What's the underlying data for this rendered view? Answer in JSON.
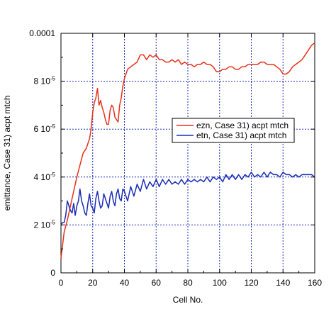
{
  "chart_data": {
    "type": "line",
    "xlabel": "Cell No.",
    "ylabel": "emittance, Case 31) acpt mtch",
    "xlim": [
      0,
      160
    ],
    "ylim": [
      0,
      0.0001
    ],
    "x_ticks": [
      "0",
      "20",
      "40",
      "60",
      "80",
      "100",
      "120",
      "140",
      "160"
    ],
    "y_ticks": [
      {
        "value": 0,
        "mant": "0",
        "exp": ""
      },
      {
        "value": 2e-05,
        "mant": "2 10",
        "exp": "-5"
      },
      {
        "value": 4e-05,
        "mant": "4 10",
        "exp": "-5"
      },
      {
        "value": 6e-05,
        "mant": "6 10",
        "exp": "-5"
      },
      {
        "value": 8e-05,
        "mant": "8 10",
        "exp": "-5"
      },
      {
        "value": 0.0001,
        "mant": "0.0001",
        "exp": ""
      }
    ],
    "grid": true,
    "legend_position": "right",
    "series": [
      {
        "name": "ezn, Case 31) acpt mtch",
        "color": "#e8311a",
        "x": [
          0,
          2,
          4,
          6,
          8,
          10,
          12,
          14,
          16,
          17,
          18,
          19,
          20,
          21,
          22,
          23,
          24,
          25,
          26,
          27,
          28,
          29,
          30,
          31,
          32,
          33,
          34,
          35,
          36,
          37,
          38,
          39,
          40,
          41,
          42,
          44,
          46,
          48,
          50,
          52,
          54,
          56,
          58,
          60,
          62,
          64,
          66,
          68,
          70,
          72,
          74,
          76,
          78,
          80,
          82,
          84,
          86,
          88,
          90,
          92,
          94,
          96,
          98,
          100,
          102,
          104,
          106,
          108,
          110,
          112,
          114,
          116,
          118,
          120,
          122,
          124,
          126,
          128,
          130,
          132,
          134,
          136,
          138,
          140,
          142,
          144,
          146,
          148,
          150,
          152,
          154,
          156,
          158,
          160
        ],
        "values": [
          6e-06,
          1.7e-05,
          2.2e-05,
          2.8e-05,
          3.4e-05,
          4e-05,
          4.5e-05,
          5e-05,
          5.2e-05,
          5.4e-05,
          5.6e-05,
          6e-05,
          6.7e-05,
          7.1e-05,
          7.3e-05,
          7.7e-05,
          7e-05,
          7.2e-05,
          6.9e-05,
          6.7e-05,
          6.4e-05,
          6.2e-05,
          6.2e-05,
          6.8e-05,
          7e-05,
          6.9e-05,
          6.5e-05,
          6.4e-05,
          6.3e-05,
          7e-05,
          7.3e-05,
          7.8e-05,
          8.1e-05,
          8.3e-05,
          8.5e-05,
          8.6e-05,
          8.7e-05,
          8.8e-05,
          9.1e-05,
          9.1e-05,
          8.9e-05,
          9.1e-05,
          9e-05,
          9.1e-05,
          8.9e-05,
          8.9e-05,
          8.8e-05,
          8.8e-05,
          8.9e-05,
          8.8e-05,
          8.9e-05,
          8.7e-05,
          8.8e-05,
          8.7e-05,
          8.7e-05,
          8.6e-05,
          8.7e-05,
          8.7e-05,
          8.8e-05,
          8.7e-05,
          8.7e-05,
          8.6e-05,
          8.4e-05,
          8.4e-05,
          8.5e-05,
          8.5e-05,
          8.6e-05,
          8.6e-05,
          8.5e-05,
          8.5e-05,
          8.6e-05,
          8.6e-05,
          8.7e-05,
          8.7e-05,
          8.7e-05,
          8.7e-05,
          8.8e-05,
          8.8e-05,
          8.7e-05,
          8.7e-05,
          8.7e-05,
          8.6e-05,
          8.5e-05,
          8.3e-05,
          8.3e-05,
          8.4e-05,
          8.6e-05,
          8.7e-05,
          8.8e-05,
          8.9e-05,
          9.1e-05,
          9.3e-05,
          9.5e-05,
          9.6e-05
        ]
      },
      {
        "name": "etn, Case 31) acpt mtch",
        "color": "#1a2db5",
        "x": [
          0,
          1,
          2,
          3,
          4,
          5,
          6,
          7,
          8,
          9,
          10,
          11,
          12,
          13,
          14,
          15,
          16,
          17,
          18,
          19,
          20,
          21,
          22,
          23,
          24,
          25,
          26,
          27,
          28,
          29,
          30,
          31,
          32,
          33,
          34,
          35,
          36,
          37,
          38,
          39,
          40,
          42,
          44,
          46,
          48,
          50,
          52,
          54,
          56,
          58,
          60,
          62,
          64,
          66,
          68,
          70,
          72,
          74,
          76,
          78,
          80,
          82,
          84,
          86,
          88,
          90,
          92,
          94,
          96,
          98,
          100,
          102,
          104,
          106,
          108,
          110,
          112,
          114,
          116,
          118,
          120,
          122,
          124,
          126,
          128,
          130,
          132,
          134,
          136,
          138,
          140,
          142,
          144,
          146,
          148,
          150,
          152,
          154,
          156,
          158,
          160
        ],
        "values": [
          2e-05,
          2.1e-05,
          2.1e-05,
          2.4e-05,
          3e-05,
          2.8e-05,
          2.6e-05,
          2.5e-05,
          2.9e-05,
          2.4e-05,
          2.8e-05,
          3e-05,
          3.5e-05,
          3e-05,
          2.8e-05,
          2.5e-05,
          2.4e-05,
          2.9e-05,
          3.3e-05,
          2.8e-05,
          2.7e-05,
          2.5e-05,
          3.1e-05,
          3.4e-05,
          3e-05,
          2.7e-05,
          2.8e-05,
          3.3e-05,
          3.1e-05,
          2.9e-05,
          2.7e-05,
          3.2e-05,
          3.4e-05,
          3e-05,
          2.8e-05,
          3.3e-05,
          3.5e-05,
          3.1e-05,
          3e-05,
          3.5e-05,
          3.4e-05,
          3e-05,
          3.6e-05,
          3.2e-05,
          3.7e-05,
          3.4e-05,
          3.9e-05,
          3.5e-05,
          3.8e-05,
          3.6e-05,
          3.9e-05,
          3.6e-05,
          3.9e-05,
          3.7e-05,
          3.9e-05,
          3.7e-05,
          3.8e-05,
          3.7e-05,
          3.9e-05,
          3.7e-05,
          3.9e-05,
          3.8e-05,
          3.9e-05,
          3.8e-05,
          3.9e-05,
          3.8e-05,
          4e-05,
          3.8e-05,
          4e-05,
          3.9e-05,
          4e-05,
          3.8e-05,
          4.1e-05,
          3.9e-05,
          4.1e-05,
          3.9e-05,
          4.1e-05,
          3.9e-05,
          4.1e-05,
          4e-05,
          4.2e-05,
          4e-05,
          4.1e-05,
          4e-05,
          4.2e-05,
          4e-05,
          4.2e-05,
          4.1e-05,
          4.1e-05,
          4e-05,
          4.2e-05,
          4.1e-05,
          4.1e-05,
          4e-05,
          4.1e-05,
          4e-05,
          4.1e-05,
          4.1e-05,
          4.1e-05,
          4.1e-05,
          4e-05
        ]
      }
    ]
  }
}
